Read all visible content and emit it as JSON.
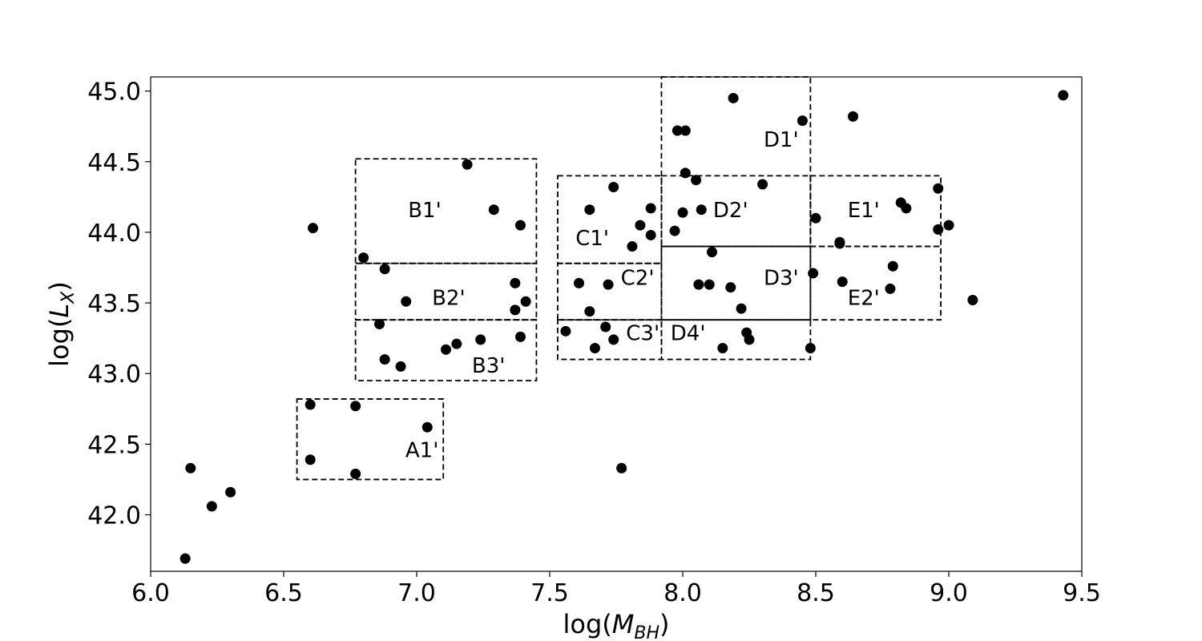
{
  "chart_data": {
    "type": "scatter",
    "title": "",
    "xlabel": {
      "prefix": "log(",
      "var": "M",
      "sub": "BH",
      "suffix": ")"
    },
    "ylabel": {
      "prefix": "log(",
      "var": "L",
      "sub": "X",
      "suffix": ")"
    },
    "xlim": [
      6.0,
      9.5
    ],
    "ylim": [
      41.6,
      45.1
    ],
    "xticks": [
      "6.0",
      "6.5",
      "7.0",
      "7.5",
      "8.0",
      "8.5",
      "9.0",
      "9.5"
    ],
    "yticks": [
      "42.0",
      "42.5",
      "43.0",
      "43.5",
      "44.0",
      "44.5",
      "45.0"
    ],
    "grid": false,
    "marker_color": "#000000",
    "points": [
      {
        "x": 6.13,
        "y": 41.69
      },
      {
        "x": 6.15,
        "y": 42.33
      },
      {
        "x": 6.23,
        "y": 42.06
      },
      {
        "x": 6.3,
        "y": 42.16
      },
      {
        "x": 6.6,
        "y": 42.78
      },
      {
        "x": 6.6,
        "y": 42.39
      },
      {
        "x": 6.61,
        "y": 44.03
      },
      {
        "x": 6.77,
        "y": 42.77
      },
      {
        "x": 6.77,
        "y": 42.29
      },
      {
        "x": 7.04,
        "y": 42.62
      },
      {
        "x": 6.8,
        "y": 43.82
      },
      {
        "x": 6.88,
        "y": 43.74
      },
      {
        "x": 6.96,
        "y": 43.51
      },
      {
        "x": 6.86,
        "y": 43.35
      },
      {
        "x": 6.88,
        "y": 43.1
      },
      {
        "x": 6.94,
        "y": 43.05
      },
      {
        "x": 7.11,
        "y": 43.17
      },
      {
        "x": 7.15,
        "y": 43.21
      },
      {
        "x": 7.24,
        "y": 43.24
      },
      {
        "x": 7.19,
        "y": 44.48
      },
      {
        "x": 7.29,
        "y": 44.16
      },
      {
        "x": 7.39,
        "y": 44.05
      },
      {
        "x": 7.37,
        "y": 43.64
      },
      {
        "x": 7.41,
        "y": 43.51
      },
      {
        "x": 7.37,
        "y": 43.45
      },
      {
        "x": 7.39,
        "y": 43.26
      },
      {
        "x": 7.56,
        "y": 43.3
      },
      {
        "x": 7.61,
        "y": 43.64
      },
      {
        "x": 7.65,
        "y": 43.44
      },
      {
        "x": 7.67,
        "y": 43.18
      },
      {
        "x": 7.71,
        "y": 43.33
      },
      {
        "x": 7.72,
        "y": 43.63
      },
      {
        "x": 7.74,
        "y": 43.24
      },
      {
        "x": 7.65,
        "y": 44.16
      },
      {
        "x": 7.74,
        "y": 44.32
      },
      {
        "x": 7.77,
        "y": 42.33
      },
      {
        "x": 7.81,
        "y": 43.9
      },
      {
        "x": 7.84,
        "y": 44.05
      },
      {
        "x": 7.88,
        "y": 44.17
      },
      {
        "x": 7.88,
        "y": 43.98
      },
      {
        "x": 7.97,
        "y": 44.01
      },
      {
        "x": 7.98,
        "y": 44.72
      },
      {
        "x": 8.01,
        "y": 44.72
      },
      {
        "x": 8.0,
        "y": 44.14
      },
      {
        "x": 8.01,
        "y": 44.42
      },
      {
        "x": 8.05,
        "y": 44.37
      },
      {
        "x": 8.07,
        "y": 44.16
      },
      {
        "x": 8.06,
        "y": 43.63
      },
      {
        "x": 8.1,
        "y": 43.63
      },
      {
        "x": 8.11,
        "y": 43.86
      },
      {
        "x": 8.15,
        "y": 43.18
      },
      {
        "x": 8.18,
        "y": 43.61
      },
      {
        "x": 8.19,
        "y": 44.95
      },
      {
        "x": 8.22,
        "y": 43.46
      },
      {
        "x": 8.24,
        "y": 43.29
      },
      {
        "x": 8.25,
        "y": 43.24
      },
      {
        "x": 8.3,
        "y": 44.34
      },
      {
        "x": 8.45,
        "y": 44.79
      },
      {
        "x": 8.48,
        "y": 43.18
      },
      {
        "x": 8.49,
        "y": 43.71
      },
      {
        "x": 8.5,
        "y": 44.1
      },
      {
        "x": 8.59,
        "y": 43.93
      },
      {
        "x": 8.59,
        "y": 43.92
      },
      {
        "x": 8.6,
        "y": 43.65
      },
      {
        "x": 8.64,
        "y": 44.82
      },
      {
        "x": 8.78,
        "y": 43.6
      },
      {
        "x": 8.79,
        "y": 43.76
      },
      {
        "x": 8.82,
        "y": 44.21
      },
      {
        "x": 8.84,
        "y": 44.17
      },
      {
        "x": 8.96,
        "y": 44.31
      },
      {
        "x": 8.96,
        "y": 44.02
      },
      {
        "x": 9.0,
        "y": 44.05
      },
      {
        "x": 9.09,
        "y": 43.52
      },
      {
        "x": 9.43,
        "y": 44.97
      }
    ],
    "regions": [
      {
        "label": "A1'",
        "x0": 6.55,
        "x1": 7.1,
        "y0": 42.25,
        "y1": 42.82,
        "lx": 7.02,
        "ly": 42.45
      },
      {
        "label": "B1'",
        "x0": 6.77,
        "x1": 7.45,
        "y0": 43.78,
        "y1": 44.52,
        "lx": 7.03,
        "ly": 44.15
      },
      {
        "label": "B2'",
        "x0": 6.77,
        "x1": 7.45,
        "y0": 43.38,
        "y1": 43.78,
        "lx": 7.12,
        "ly": 43.53
      },
      {
        "label": "B3'",
        "x0": 6.77,
        "x1": 7.45,
        "y0": 42.95,
        "y1": 43.38,
        "lx": 7.27,
        "ly": 43.05
      },
      {
        "label": "C1'",
        "x0": 7.53,
        "x1": 7.92,
        "y0": 43.78,
        "y1": 44.4,
        "lx": 7.66,
        "ly": 43.95
      },
      {
        "label": "C2'",
        "x0": 7.53,
        "x1": 7.92,
        "y0": 43.38,
        "y1": 43.78,
        "lx": 7.83,
        "ly": 43.67
      },
      {
        "label": "C3'",
        "x0": 7.53,
        "x1": 7.92,
        "y0": 43.1,
        "y1": 43.38,
        "lx": 7.85,
        "ly": 43.28
      },
      {
        "label": "D1'",
        "x0": 7.92,
        "x1": 8.48,
        "y0": 43.9,
        "y1": 45.1,
        "lx": 8.37,
        "ly": 44.65
      },
      {
        "label": "D2'",
        "x0": 7.92,
        "x1": 8.48,
        "y0": 43.9,
        "y1": 44.4,
        "lx": 8.18,
        "ly": 44.15
      },
      {
        "label": "D3'",
        "x0": 7.92,
        "x1": 8.48,
        "y0": 43.38,
        "y1": 43.9,
        "lx": 8.37,
        "ly": 43.67
      },
      {
        "label": "D4'",
        "x0": 7.92,
        "x1": 8.48,
        "y0": 43.1,
        "y1": 43.38,
        "lx": 8.02,
        "ly": 43.28
      },
      {
        "label": "E1'",
        "x0": 8.48,
        "x1": 8.97,
        "y0": 43.9,
        "y1": 44.4,
        "lx": 8.68,
        "ly": 44.15
      },
      {
        "label": "E2'",
        "x0": 8.48,
        "x1": 8.97,
        "y0": 43.38,
        "y1": 43.9,
        "lx": 8.68,
        "ly": 43.53
      }
    ]
  }
}
